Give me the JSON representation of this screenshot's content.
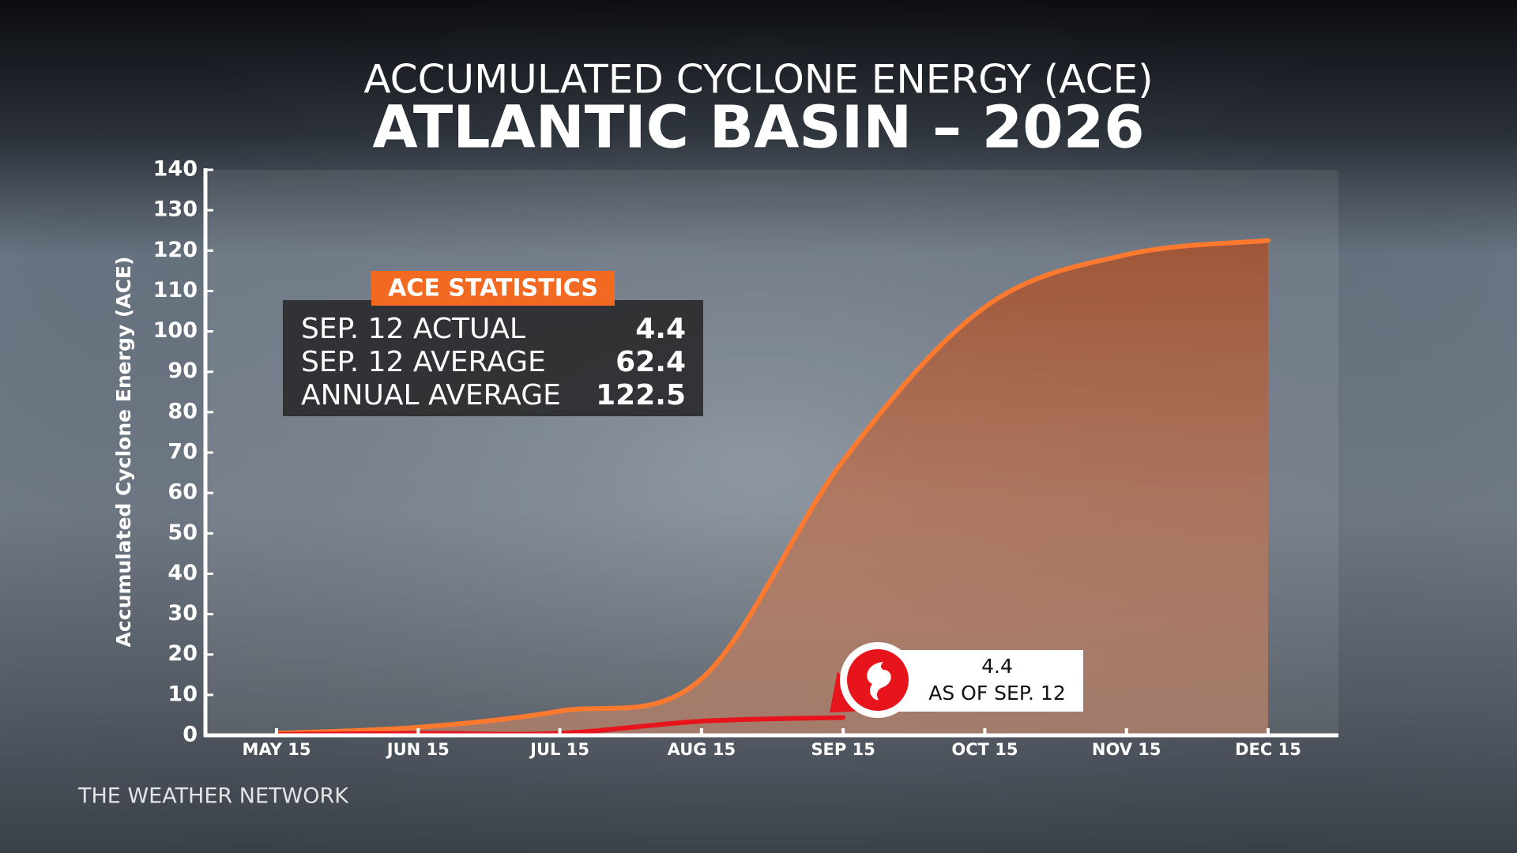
{
  "chart_data": {
    "type": "line",
    "title": "ACCUMULATED CYCLONE ENERGY (ACE)",
    "subtitle": "ATLANTIC BASIN – 2026",
    "y_label": "Accumulated Cyclone Energy (ACE)",
    "categories": [
      "MAY 15",
      "JUN 15",
      "JUL 15",
      "AUG 15",
      "SEP 15",
      "OCT 15",
      "NOV 15",
      "DEC 15"
    ],
    "series": [
      {
        "name": "Average",
        "color": "#ff7a2e",
        "values": [
          0.5,
          2,
          6,
          14,
          68,
          106,
          119,
          122.5
        ]
      },
      {
        "name": "Actual",
        "color": "#e8141c",
        "values": [
          0.2,
          0.5,
          0.5,
          3.5,
          4.4,
          null,
          null,
          null
        ]
      }
    ],
    "ylim": [
      0,
      140
    ],
    "yticks": [
      0,
      10,
      20,
      30,
      40,
      50,
      60,
      70,
      80,
      90,
      100,
      110,
      120,
      130,
      140
    ],
    "stats": {
      "title": "ACE STATISTICS",
      "rows": [
        {
          "label": "SEP. 12 ACTUAL",
          "value": 4.4
        },
        {
          "label": "SEP. 12 AVERAGE",
          "value": 62.4
        },
        {
          "label": "ANNUAL AVERAGE",
          "value": 122.5
        }
      ]
    },
    "callout": {
      "value": 4.4,
      "label": "AS OF SEP. 12"
    },
    "source": "THE WEATHER NETWORK"
  }
}
